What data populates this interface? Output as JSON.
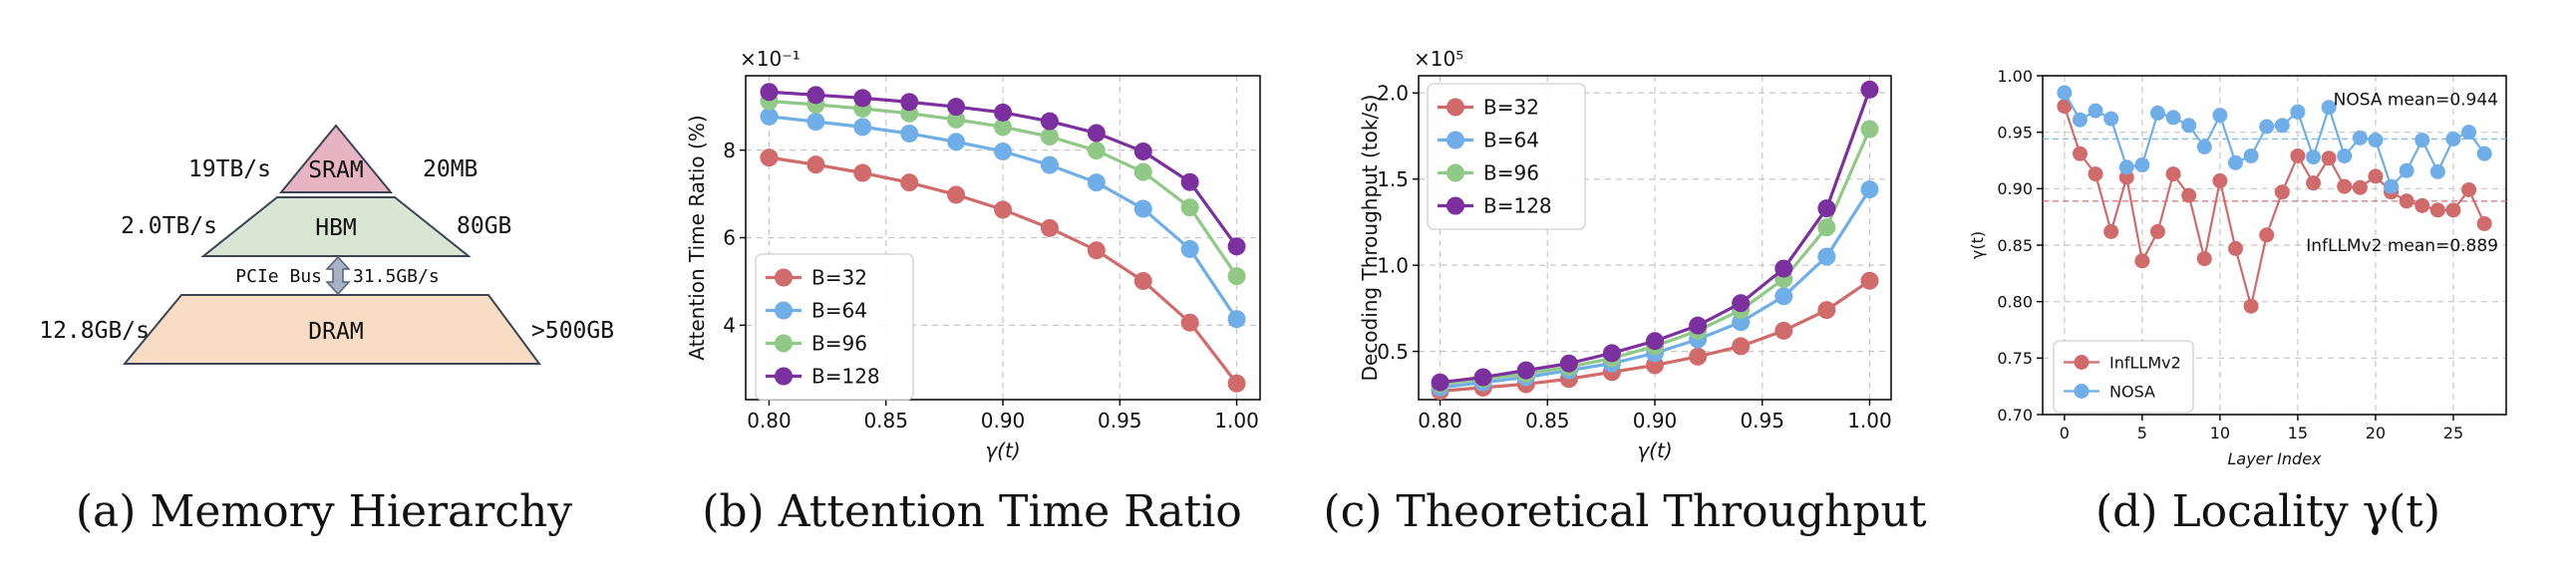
{
  "captions": [
    "(a) Memory Hierarchy",
    "(b) Attention Time Ratio",
    "(c) Theoretical Throughput",
    "(d) Locality γ(t)"
  ],
  "memory_hierarchy": {
    "levels": [
      {
        "name": "SRAM",
        "bandwidth": "19TB/s",
        "capacity": "20MB",
        "color": "#e8b4c4"
      },
      {
        "name": "HBM",
        "bandwidth": "2.0TB/s",
        "capacity": "80GB",
        "color": "#d9e6d3"
      },
      {
        "name": "DRAM",
        "bandwidth": "12.8GB/s",
        "capacity": ">500GB",
        "color": "#f8dcc4"
      }
    ],
    "bus_label": "PCIe Bus",
    "bus_bandwidth": "31.5GB/s"
  },
  "chart_data": [
    {
      "type": "line",
      "title": "Attention Time Ratio",
      "xlabel": "γ(t)",
      "ylabel": "Attention Time Ratio (%)",
      "offset_label": "×10⁻¹",
      "xlim": [
        0.79,
        1.01
      ],
      "ylim": [
        2.3,
        9.7
      ],
      "xticks": [
        0.8,
        0.85,
        0.9,
        0.95,
        1.0
      ],
      "xtick_labels": [
        "0.80",
        "0.85",
        "0.90",
        "0.95",
        "1.00"
      ],
      "yticks": [
        4,
        6,
        8
      ],
      "ytick_labels": [
        "4",
        "6",
        "8"
      ],
      "legend_position": "lower-left",
      "x": [
        0.8,
        0.82,
        0.84,
        0.86,
        0.88,
        0.9,
        0.92,
        0.94,
        0.96,
        0.98,
        1.0
      ],
      "series": [
        {
          "name": "B=32",
          "color": "#d16b6b",
          "values": [
            7.83,
            7.67,
            7.48,
            7.26,
            6.98,
            6.64,
            6.22,
            5.71,
            5.01,
            4.06,
            2.67
          ]
        },
        {
          "name": "B=64",
          "color": "#6faee8",
          "values": [
            8.77,
            8.65,
            8.53,
            8.38,
            8.19,
            7.97,
            7.66,
            7.26,
            6.66,
            5.74,
            4.14
          ]
        },
        {
          "name": "B=96",
          "color": "#8fc985",
          "values": [
            9.12,
            9.04,
            8.95,
            8.84,
            8.7,
            8.53,
            8.31,
            7.99,
            7.5,
            6.69,
            5.12
          ]
        },
        {
          "name": "B=128",
          "color": "#7c2f9e",
          "values": [
            9.33,
            9.26,
            9.19,
            9.1,
            8.99,
            8.86,
            8.66,
            8.39,
            7.97,
            7.27,
            5.8
          ]
        }
      ]
    },
    {
      "type": "line",
      "title": "Theoretical Throughput",
      "xlabel": "γ(t)",
      "ylabel": "Decoding Throughput (tok/s)",
      "offset_label": "×10⁵",
      "xlim": [
        0.79,
        1.01
      ],
      "ylim": [
        0.22,
        2.1
      ],
      "xticks": [
        0.8,
        0.85,
        0.9,
        0.95,
        1.0
      ],
      "xtick_labels": [
        "0.80",
        "0.85",
        "0.90",
        "0.95",
        "1.00"
      ],
      "yticks": [
        0.5,
        1.0,
        1.5,
        2.0
      ],
      "ytick_labels": [
        "0.5",
        "1.0",
        "1.5",
        "2.0"
      ],
      "legend_position": "upper-left",
      "x": [
        0.8,
        0.82,
        0.84,
        0.86,
        0.88,
        0.9,
        0.92,
        0.94,
        0.96,
        0.98,
        1.0
      ],
      "series": [
        {
          "name": "B=32",
          "color": "#d16b6b",
          "values": [
            0.27,
            0.29,
            0.31,
            0.34,
            0.38,
            0.42,
            0.47,
            0.53,
            0.62,
            0.74,
            0.91
          ]
        },
        {
          "name": "B=64",
          "color": "#6faee8",
          "values": [
            0.29,
            0.32,
            0.35,
            0.39,
            0.43,
            0.49,
            0.57,
            0.67,
            0.82,
            1.05,
            1.44
          ]
        },
        {
          "name": "B=96",
          "color": "#8fc985",
          "values": [
            0.31,
            0.34,
            0.37,
            0.41,
            0.46,
            0.53,
            0.62,
            0.74,
            0.92,
            1.22,
            1.79
          ]
        },
        {
          "name": "B=128",
          "color": "#7c2f9e",
          "values": [
            0.32,
            0.35,
            0.39,
            0.43,
            0.49,
            0.56,
            0.65,
            0.78,
            0.98,
            1.33,
            2.02
          ]
        }
      ]
    },
    {
      "type": "line",
      "title": "Locality γ(t)",
      "xlabel": "Layer Index",
      "ylabel": "γ(t)",
      "xlim": [
        -1.4,
        28.4
      ],
      "ylim": [
        0.7,
        1.0
      ],
      "xticks": [
        0,
        5,
        10,
        15,
        20,
        25
      ],
      "xtick_labels": [
        "0",
        "5",
        "10",
        "15",
        "20",
        "25"
      ],
      "yticks": [
        0.7,
        0.75,
        0.8,
        0.85,
        0.9,
        0.95,
        1.0
      ],
      "ytick_labels": [
        "0.70",
        "0.75",
        "0.80",
        "0.85",
        "0.90",
        "0.95",
        "1.00"
      ],
      "legend_position": "lower-left",
      "x": [
        0,
        1,
        2,
        3,
        4,
        5,
        6,
        7,
        8,
        9,
        10,
        11,
        12,
        13,
        14,
        15,
        16,
        17,
        18,
        19,
        20,
        21,
        22,
        23,
        24,
        25,
        26,
        27
      ],
      "series": [
        {
          "name": "InfLLMv2",
          "color": "#d16b6b",
          "mean": 0.889,
          "mean_label": "InfLLMv2 mean=0.889",
          "values": [
            0.973,
            0.931,
            0.913,
            0.862,
            0.91,
            0.836,
            0.862,
            0.913,
            0.894,
            0.838,
            0.907,
            0.847,
            0.796,
            0.859,
            0.897,
            0.929,
            0.905,
            0.927,
            0.902,
            0.901,
            0.911,
            0.897,
            0.889,
            0.885,
            0.881,
            0.881,
            0.899,
            0.869
          ]
        },
        {
          "name": "NOSA",
          "color": "#6faee8",
          "mean": 0.944,
          "mean_label": "NOSA mean=0.944",
          "values": [
            0.985,
            0.961,
            0.969,
            0.962,
            0.919,
            0.921,
            0.967,
            0.963,
            0.956,
            0.937,
            0.965,
            0.923,
            0.929,
            0.955,
            0.956,
            0.968,
            0.928,
            0.972,
            0.929,
            0.945,
            0.943,
            0.902,
            0.916,
            0.943,
            0.915,
            0.944,
            0.95,
            0.931
          ]
        }
      ]
    }
  ]
}
